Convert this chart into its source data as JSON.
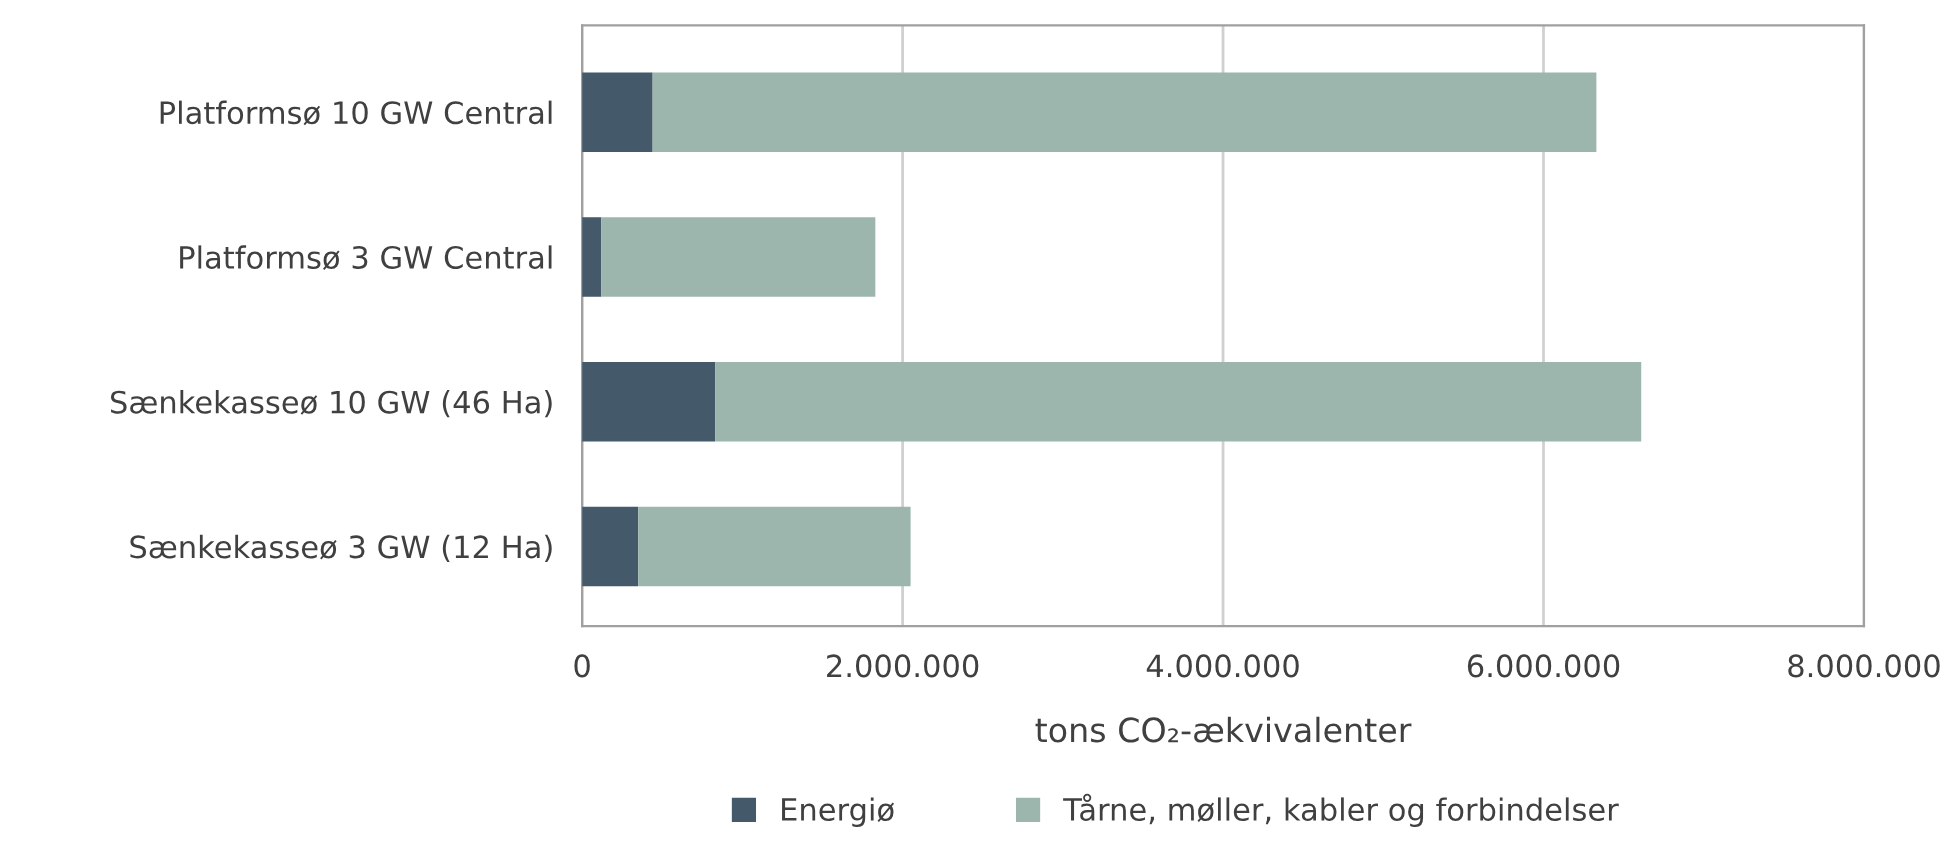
{
  "chart_data": {
    "type": "bar",
    "orientation": "horizontal",
    "stacked": true,
    "categories": [
      "Platformsø 10 GW Central",
      "Platformsø 3 GW Central",
      "Sænkekasseø 10 GW (46 Ha)",
      "Sænkekasseø 3 GW (12 Ha)"
    ],
    "series": [
      {
        "name": "Energiø",
        "color": "#44596a",
        "values": [
          440000,
          120000,
          830000,
          350000
        ]
      },
      {
        "name": "Tårne, møller, kabler og forbindelser",
        "color": "#9db6ad",
        "values": [
          5890000,
          1710000,
          5780000,
          1700000
        ]
      }
    ],
    "xlabel": "tons CO₂-ækvivalenter",
    "xlim": [
      0,
      8000000
    ],
    "xticks": [
      {
        "value": 0,
        "label": "0"
      },
      {
        "value": 2000000,
        "label": "2.000.000"
      },
      {
        "value": 4000000,
        "label": "4.000.000"
      },
      {
        "value": 6000000,
        "label": "6.000.000"
      },
      {
        "value": 8000000,
        "label": "8.000.000"
      }
    ],
    "grid": "x",
    "legend": "bottom"
  }
}
